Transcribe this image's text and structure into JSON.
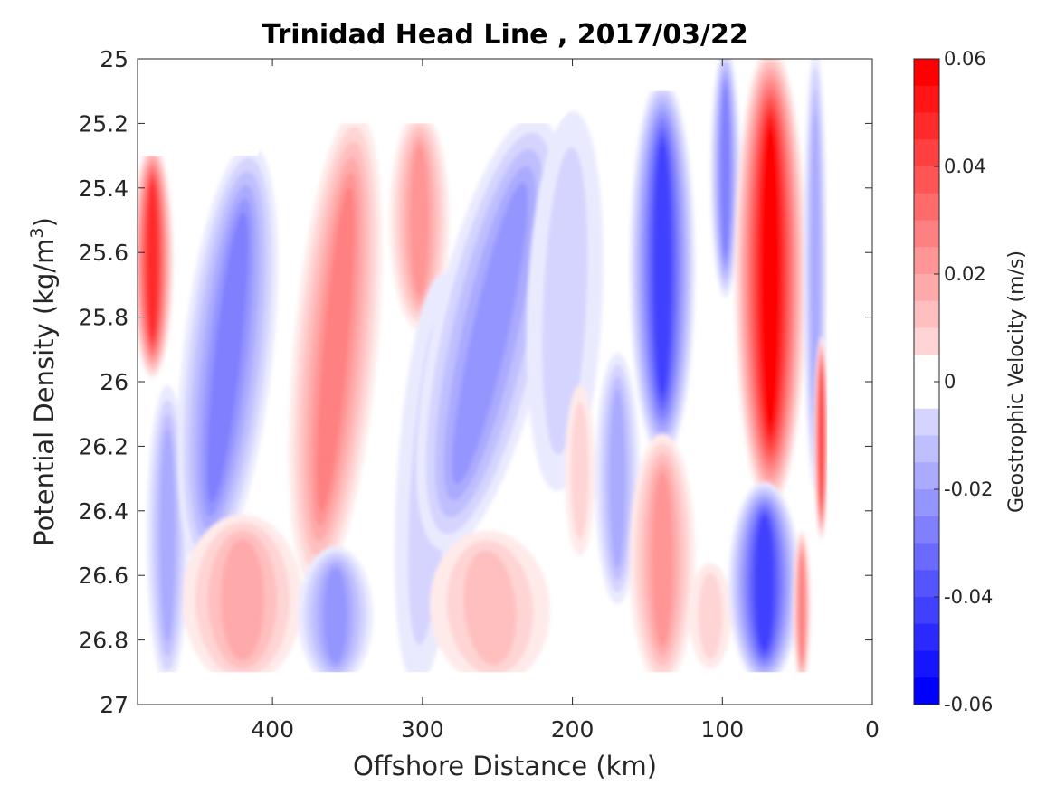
{
  "chart_data": {
    "type": "contour",
    "title": "Trinidad Head Line , 2017/03/22",
    "xlabel": "Offshore Distance (km)",
    "ylabel_main": "Potential Density (kg/m",
    "ylabel_sup": "3",
    "ylabel_close": ")",
    "xlim": [
      490,
      0
    ],
    "ylim": [
      25,
      27
    ],
    "x_axis_reversed": true,
    "y_axis_reversed": true,
    "x_ticks": [
      400,
      300,
      200,
      100,
      0
    ],
    "x_tick_labels": [
      "400",
      "300",
      "200",
      "100",
      "0"
    ],
    "y_ticks": [
      25,
      25.2,
      25.4,
      25.6,
      25.8,
      26,
      26.2,
      26.4,
      26.6,
      26.8,
      27
    ],
    "y_tick_labels": [
      "25",
      "25.2",
      "25.4",
      "25.6",
      "25.8",
      "26",
      "26.2",
      "26.4",
      "26.6",
      "26.8",
      "27"
    ],
    "colorbar": {
      "label": "Geostrophic Velocity (m/s)",
      "limits": [
        -0.06,
        0.06
      ],
      "levels": 24,
      "ticks": [
        0.06,
        0.04,
        0.02,
        0,
        -0.02,
        -0.04,
        -0.06
      ],
      "tick_labels": [
        "0.06",
        "0.04",
        "0.02",
        "0",
        "-0.02",
        "-0.04",
        "-0.06"
      ],
      "colormap": "blue-white-red",
      "negative_color": "#0000ff",
      "positive_color": "#ff0000",
      "zero_color": "#ffffff"
    },
    "data_top_boundary": [
      {
        "x": 490,
        "y": 25.3
      },
      {
        "x": 465,
        "y": 25.3
      },
      {
        "x": 410,
        "y": 25.3
      },
      {
        "x": 400,
        "y": 25.2
      },
      {
        "x": 210,
        "y": 25.2
      },
      {
        "x": 190,
        "y": 25.1
      },
      {
        "x": 120,
        "y": 25.1
      },
      {
        "x": 108,
        "y": 25.0
      },
      {
        "x": 30,
        "y": 25.0
      }
    ],
    "data_bottom_boundary": [
      {
        "x": 490,
        "y": 26.9
      },
      {
        "x": 210,
        "y": 26.9
      },
      {
        "x": 100,
        "y": 26.9
      },
      {
        "x": 40,
        "y": 26.9
      },
      {
        "x": 30,
        "y": 26.45
      }
    ],
    "features": [
      {
        "x": 480,
        "x_half_width": 14,
        "y_top": 25.3,
        "y_bottom": 25.95,
        "peak": 0.05,
        "tilt": 0
      },
      {
        "x": 470,
        "x_half_width": 14,
        "y_top": 26.05,
        "y_bottom": 26.9,
        "peak": -0.018,
        "tilt": 0
      },
      {
        "x": 430,
        "x_half_width": 30,
        "y_top": 25.3,
        "y_bottom": 26.55,
        "peak": -0.03,
        "tilt": 25
      },
      {
        "x": 420,
        "x_half_width": 40,
        "y_top": 26.45,
        "y_bottom": 26.9,
        "peak": 0.018,
        "tilt": 0
      },
      {
        "x": 358,
        "x_half_width": 28,
        "y_top": 25.2,
        "y_bottom": 26.6,
        "peak": 0.032,
        "tilt": 20
      },
      {
        "x": 358,
        "x_half_width": 25,
        "y_top": 26.55,
        "y_bottom": 26.9,
        "peak": -0.025,
        "tilt": 0
      },
      {
        "x": 302,
        "x_half_width": 20,
        "y_top": 25.2,
        "y_bottom": 25.8,
        "peak": 0.025,
        "tilt": 0
      },
      {
        "x": 295,
        "x_half_width": 22,
        "y_top": 25.7,
        "y_bottom": 26.9,
        "peak": -0.012,
        "tilt": 15
      },
      {
        "x": 255,
        "x_half_width": 38,
        "y_top": 25.2,
        "y_bottom": 26.5,
        "peak": -0.025,
        "tilt": 50
      },
      {
        "x": 255,
        "x_half_width": 40,
        "y_top": 26.5,
        "y_bottom": 26.9,
        "peak": 0.014,
        "tilt": -20
      },
      {
        "x": 205,
        "x_half_width": 25,
        "y_top": 25.2,
        "y_bottom": 26.3,
        "peak": -0.01,
        "tilt": 10
      },
      {
        "x": 195,
        "x_half_width": 10,
        "y_top": 26.05,
        "y_bottom": 26.5,
        "peak": 0.012,
        "tilt": 0
      },
      {
        "x": 170,
        "x_half_width": 15,
        "y_top": 25.95,
        "y_bottom": 26.65,
        "peak": -0.018,
        "tilt": 0
      },
      {
        "x": 140,
        "x_half_width": 22,
        "y_top": 25.1,
        "y_bottom": 26.2,
        "peak": -0.045,
        "tilt": 0
      },
      {
        "x": 140,
        "x_half_width": 22,
        "y_top": 26.2,
        "y_bottom": 26.9,
        "peak": 0.024,
        "tilt": 0
      },
      {
        "x": 98,
        "x_half_width": 10,
        "y_top": 25.0,
        "y_bottom": 25.7,
        "peak": -0.03,
        "tilt": 0
      },
      {
        "x": 108,
        "x_half_width": 14,
        "y_top": 26.6,
        "y_bottom": 26.85,
        "peak": 0.01,
        "tilt": 0
      },
      {
        "x": 68,
        "x_half_width": 24,
        "y_top": 25.0,
        "y_bottom": 26.35,
        "peak": 0.06,
        "tilt": 0
      },
      {
        "x": 72,
        "x_half_width": 24,
        "y_top": 26.35,
        "y_bottom": 26.9,
        "peak": -0.045,
        "tilt": 0
      },
      {
        "x": 38,
        "x_half_width": 8,
        "y_top": 25.0,
        "y_bottom": 26.3,
        "peak": -0.018,
        "tilt": 0
      },
      {
        "x": 34,
        "x_half_width": 5,
        "y_top": 25.9,
        "y_bottom": 26.45,
        "peak": 0.045,
        "tilt": 0
      },
      {
        "x": 47,
        "x_half_width": 6,
        "y_top": 26.5,
        "y_bottom": 26.9,
        "peak": 0.03,
        "tilt": 0
      }
    ]
  }
}
